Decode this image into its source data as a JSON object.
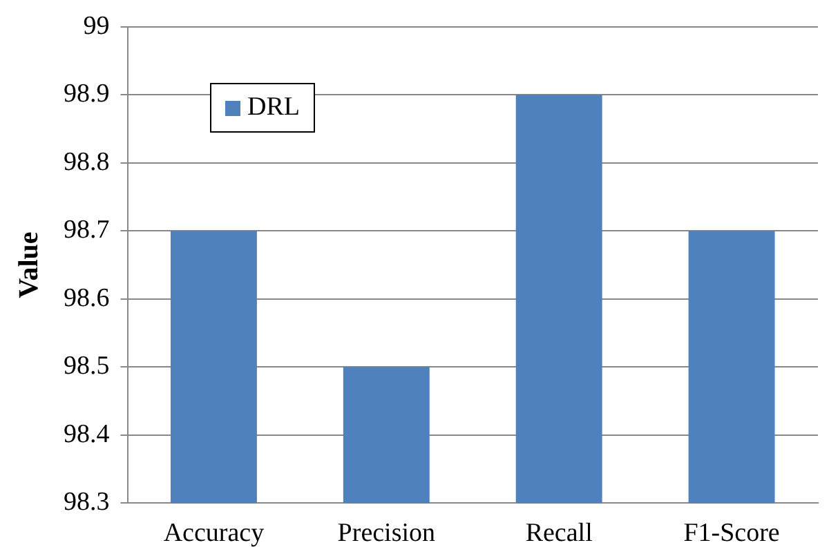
{
  "chart_data": {
    "type": "bar",
    "ylabel": "Value",
    "categories": [
      "Accuracy",
      "Precision",
      "Recall",
      "F1-Score"
    ],
    "series": [
      {
        "name": "DRL",
        "color": "#4f81bd",
        "values": [
          98.7,
          98.5,
          98.9,
          98.7
        ]
      }
    ],
    "ylim": [
      98.3,
      99
    ],
    "yticks": [
      98.3,
      98.4,
      98.5,
      98.6,
      98.7,
      98.8,
      98.9,
      99
    ],
    "grid": "y",
    "legend": "top left"
  }
}
